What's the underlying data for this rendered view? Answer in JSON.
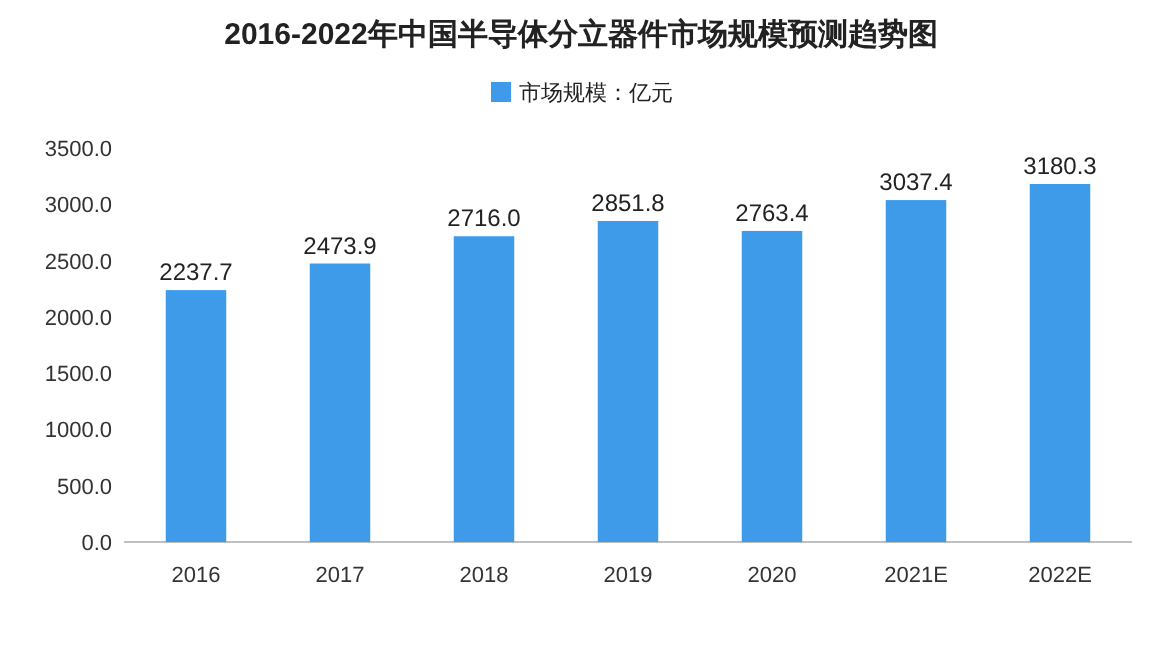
{
  "chart_data": {
    "type": "bar",
    "title": "2016-2022年中国半导体分立器件市场规模预测趋势图",
    "categories": [
      "2016",
      "2017",
      "2018",
      "2019",
      "2020",
      "2021E",
      "2022E"
    ],
    "series": [
      {
        "name": "市场规模：亿元",
        "color": "#3d9be9",
        "values": [
          2237.7,
          2473.9,
          2716.0,
          2851.8,
          2763.4,
          3037.4,
          3180.3
        ]
      }
    ],
    "value_labels": [
      "2237.7",
      "2473.9",
      "2716.0",
      "2851.8",
      "2763.4",
      "3037.4",
      "3180.3"
    ],
    "ylim": [
      0,
      3500
    ],
    "yticks": [
      {
        "value": 0,
        "label": "0.0"
      },
      {
        "value": 500,
        "label": "500.0"
      },
      {
        "value": 1000,
        "label": "1000.0"
      },
      {
        "value": 1500,
        "label": "1500.0"
      },
      {
        "value": 2000,
        "label": "2000.0"
      },
      {
        "value": 2500,
        "label": "2500.0"
      },
      {
        "value": 3000,
        "label": "3000.0"
      },
      {
        "value": 3500,
        "label": "3500.0"
      }
    ],
    "legend": "top"
  }
}
